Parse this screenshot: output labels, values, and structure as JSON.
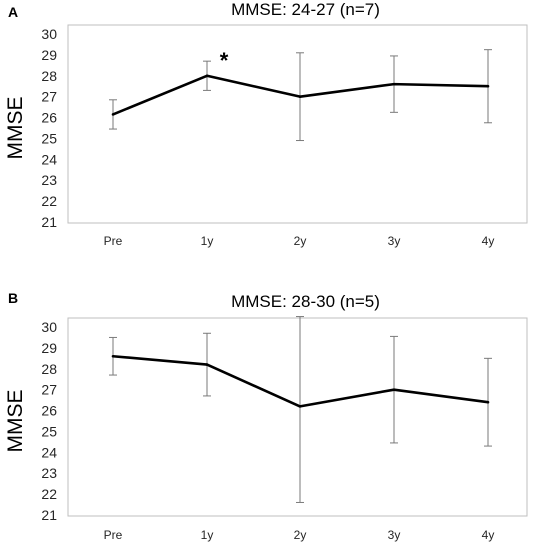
{
  "chart_data": [
    {
      "panel_label": "A",
      "type": "line",
      "title": "MMSE: 24-27 (n=7)",
      "xlabel": "",
      "ylabel": "MMSE",
      "ylim": [
        21,
        30
      ],
      "yticks": [
        "21",
        "22",
        "23",
        "24",
        "25",
        "26",
        "27",
        "28",
        "29",
        "30"
      ],
      "categories": [
        "Pre",
        "1y",
        "2y",
        "3y",
        "4y"
      ],
      "series": [
        {
          "values": [
            26.15,
            28.0,
            27.0,
            27.6,
            27.5
          ],
          "error_low": [
            25.45,
            27.3,
            24.9,
            26.25,
            25.75
          ],
          "error_high": [
            26.85,
            28.7,
            29.1,
            28.95,
            29.25
          ]
        }
      ],
      "annotations": [
        {
          "category": "1y",
          "text": "*"
        }
      ],
      "grid": false,
      "line_color": "#000000",
      "errorbar_color": "#7a7a7a",
      "frame_color": "#bfbfbf"
    },
    {
      "panel_label": "B",
      "type": "line",
      "title": "MMSE: 28-30 (n=5)",
      "xlabel": "",
      "ylabel": "MMSE",
      "ylim": [
        21,
        30
      ],
      "yticks": [
        "21",
        "22",
        "23",
        "24",
        "25",
        "26",
        "27",
        "28",
        "29",
        "30"
      ],
      "categories": [
        "Pre",
        "1y",
        "2y",
        "3y",
        "4y"
      ],
      "series": [
        {
          "values": [
            28.6,
            28.2,
            26.2,
            27.0,
            26.4
          ],
          "error_low": [
            27.7,
            26.7,
            21.6,
            24.45,
            24.3
          ],
          "error_high": [
            29.5,
            29.7,
            30.8,
            29.55,
            28.5
          ]
        }
      ],
      "annotations": [],
      "grid": false,
      "line_color": "#000000",
      "errorbar_color": "#7a7a7a",
      "frame_color": "#bfbfbf"
    }
  ]
}
